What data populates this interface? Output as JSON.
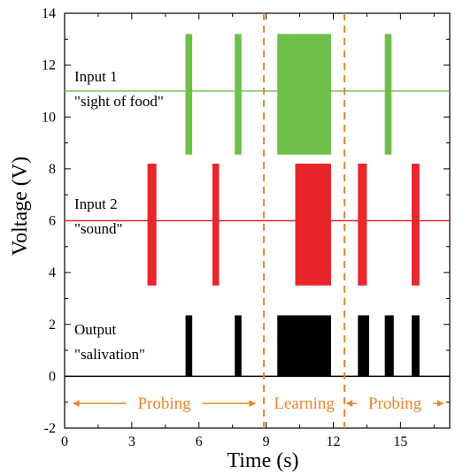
{
  "chart_data": {
    "type": "line",
    "xlabel": "Time (s)",
    "ylabel": "Voltage (V)",
    "xlim": [
      0,
      17.2
    ],
    "ylim": [
      -2,
      14
    ],
    "xticks": [
      0,
      3,
      6,
      9,
      12,
      15
    ],
    "yticks": [
      -2,
      0,
      2,
      4,
      6,
      8,
      10,
      12,
      14
    ],
    "grid": false,
    "series": [
      {
        "name": "Input 1",
        "color": "#6cc04a",
        "baseline": 11,
        "low": 8.55,
        "high": 13.2,
        "pulses": [
          [
            5.4,
            5.7
          ],
          [
            7.6,
            7.9
          ],
          [
            9.5,
            11.9
          ],
          [
            14.3,
            14.6
          ]
        ]
      },
      {
        "name": "Input 2",
        "color": "#e8262b",
        "baseline": 6,
        "low": 3.5,
        "high": 8.2,
        "pulses": [
          [
            3.7,
            4.1
          ],
          [
            6.6,
            6.9
          ],
          [
            10.3,
            11.9
          ],
          [
            13.1,
            13.5
          ],
          [
            15.5,
            15.85
          ]
        ]
      },
      {
        "name": "Output",
        "color": "#000000",
        "baseline": 0,
        "low": 0,
        "high": 2.35,
        "pulses": [
          [
            5.4,
            5.7
          ],
          [
            7.6,
            7.9
          ],
          [
            9.5,
            11.9
          ],
          [
            13.1,
            13.6
          ],
          [
            14.3,
            14.7
          ],
          [
            15.5,
            15.85
          ]
        ]
      }
    ],
    "dividers": {
      "x": [
        8.9,
        12.5
      ],
      "color": "#e8862a"
    },
    "annotations": {
      "input1_title": "Input 1",
      "input1_sub": "\"sight of food\"",
      "input2_title": "Input 2",
      "input2_sub": "\"sound\"",
      "output_title": "Output",
      "output_sub": "\"salivation\""
    },
    "phases": [
      {
        "label": "Probing",
        "from": 0.3,
        "to": 8.6
      },
      {
        "label": "Learning",
        "from": 8.9,
        "to": 12.5
      },
      {
        "label": "Probing",
        "from": 12.5,
        "to": 17.0
      }
    ]
  }
}
